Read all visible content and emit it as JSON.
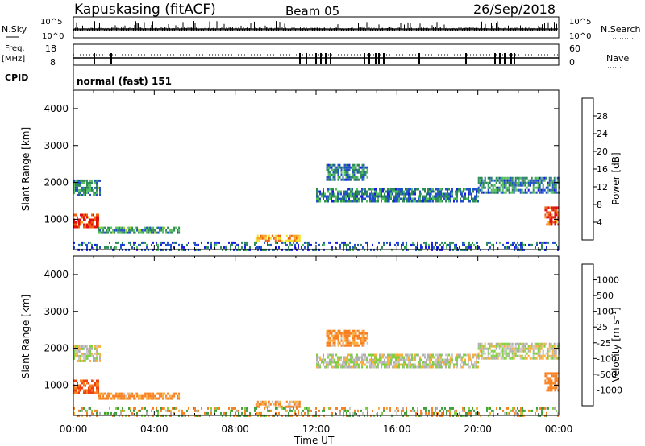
{
  "header": {
    "station": "Kapuskasing (fitACF)",
    "beam": "Beam 05",
    "date": "26/Sep/2018"
  },
  "strips": {
    "nsky_label": "N.Sky",
    "nsearch_label": "N.Search",
    "noise_tick_top": "10^5",
    "noise_tick_bottom": "10^0",
    "noise_right_top": "10^5",
    "noise_right_bottom": "10^0",
    "freq_label_1": "Freq.",
    "freq_label_2": "[MHz]",
    "freq_tick_top": "18",
    "freq_tick_bottom": "8",
    "nave_label": "Nave",
    "nave_tick_top": "60",
    "nave_tick_bottom": "0",
    "cpid_label": "CPID",
    "cpid_value": "normal (fast) 151"
  },
  "colors": {
    "power_scale": [
      "#1a1ae6",
      "#2050c8",
      "#2e8b57",
      "#55c060",
      "#a0d030",
      "#f0e020",
      "#f8a020",
      "#f06010",
      "#e01010"
    ],
    "velocity_scale": [
      "#e01010",
      "#f04010",
      "#f88020",
      "#f8b040",
      "#c8c8c8",
      "#b0b0b0",
      "#80d040",
      "#40a040",
      "#2e7d5a",
      "#2050c8",
      "#1a1ae6"
    ]
  },
  "chart_data": [
    {
      "type": "heatmap",
      "title": "",
      "xlabel": "Time UT",
      "ylabel": "Slant Range [km]",
      "x_tick_labels": [
        "00:00",
        "04:00",
        "08:00",
        "12:00",
        "16:00",
        "20:00",
        "00:00"
      ],
      "xlim": [
        0,
        24
      ],
      "ylim": [
        180,
        4500
      ],
      "y_ticks": [
        1000,
        2000,
        3000,
        4000
      ],
      "y_tick_labels": [
        "1000",
        "2000",
        "3000",
        "4000"
      ],
      "colorbar_label": "Power [dB]",
      "colorbar_ticks": [
        "4",
        "8",
        "12",
        "16",
        "20",
        "24",
        "28"
      ],
      "echo_bands": [
        {
          "t": [
            0.0,
            1.3
          ],
          "range": [
            1650,
            2080
          ],
          "power": 9
        },
        {
          "t": [
            0.0,
            1.2
          ],
          "range": [
            800,
            1150
          ],
          "power": 28
        },
        {
          "t": [
            1.2,
            5.2
          ],
          "range": [
            620,
            800
          ],
          "power": 10
        },
        {
          "t": [
            9.0,
            11.2
          ],
          "range": [
            420,
            580
          ],
          "power": 22
        },
        {
          "t": [
            12.0,
            20.0
          ],
          "range": [
            1500,
            1850
          ],
          "power": 8
        },
        {
          "t": [
            12.5,
            14.5
          ],
          "range": [
            2100,
            2500
          ],
          "power": 8
        },
        {
          "t": [
            20.0,
            24.0
          ],
          "range": [
            1700,
            2150
          ],
          "power": 8
        },
        {
          "t": [
            23.3,
            24.0
          ],
          "range": [
            850,
            1350
          ],
          "power": 27
        },
        {
          "t": [
            0.0,
            24.0
          ],
          "range": [
            180,
            400
          ],
          "power": 6
        }
      ]
    },
    {
      "type": "heatmap",
      "title": "",
      "xlabel": "Time UT",
      "ylabel": "Slant Range [km]",
      "x_tick_labels": [
        "00:00",
        "04:00",
        "08:00",
        "12:00",
        "16:00",
        "20:00",
        "00:00"
      ],
      "xlim": [
        0,
        24
      ],
      "ylim": [
        180,
        4500
      ],
      "y_ticks": [
        1000,
        2000,
        3000,
        4000
      ],
      "y_tick_labels": [
        "1000",
        "2000",
        "3000",
        "4000"
      ],
      "colorbar_label": "Velocity [m s⁻¹]",
      "colorbar_ticks": [
        "1000",
        "500",
        "100",
        "25",
        "-25",
        "-100",
        "-500",
        "-1000"
      ],
      "echo_bands": [
        {
          "t": [
            0.0,
            1.3
          ],
          "range": [
            1650,
            2080
          ],
          "velocity": 0
        },
        {
          "t": [
            0.0,
            1.2
          ],
          "range": [
            800,
            1150
          ],
          "velocity": -300
        },
        {
          "t": [
            1.2,
            5.2
          ],
          "range": [
            620,
            800
          ],
          "velocity": -80
        },
        {
          "t": [
            9.0,
            11.2
          ],
          "range": [
            420,
            580
          ],
          "velocity": -60
        },
        {
          "t": [
            12.0,
            20.0
          ],
          "range": [
            1500,
            1850
          ],
          "velocity": 10
        },
        {
          "t": [
            12.5,
            14.5
          ],
          "range": [
            2100,
            2500
          ],
          "velocity": -80
        },
        {
          "t": [
            20.0,
            24.0
          ],
          "range": [
            1700,
            2150
          ],
          "velocity": 0
        },
        {
          "t": [
            23.3,
            24.0
          ],
          "range": [
            850,
            1350
          ],
          "velocity": -200
        },
        {
          "t": [
            0.0,
            24.0
          ],
          "range": [
            180,
            400
          ],
          "velocity": 0
        }
      ]
    }
  ]
}
